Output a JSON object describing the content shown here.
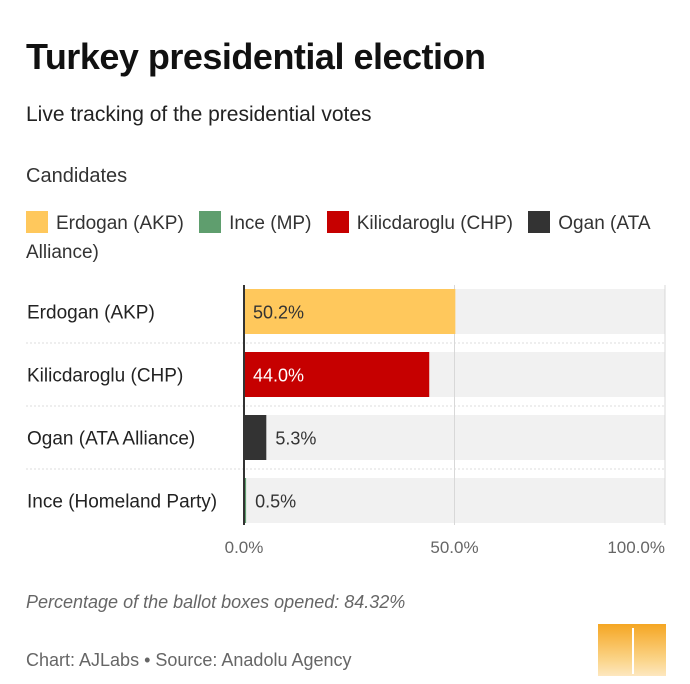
{
  "title": "Turkey presidential election",
  "subtitle": "Live tracking of the presidential votes",
  "legend": {
    "title": "Candidates",
    "items": [
      {
        "label": "Erdogan (AKP)",
        "color": "#ffc85c"
      },
      {
        "label": "Ince (MP)",
        "color": "#5f9e6e"
      },
      {
        "label": "Kilicdaroglu (CHP)",
        "color": "#c60000"
      },
      {
        "label": "Ogan (ATA Alliance)",
        "color": "#333333"
      }
    ]
  },
  "chart_data": {
    "type": "bar",
    "orientation": "horizontal",
    "categories": [
      "Erdogan (AKP)",
      "Kilicdaroglu (CHP)",
      "Ogan (ATA Alliance)",
      "Ince (Homeland Party)"
    ],
    "values": [
      50.2,
      44.0,
      5.3,
      0.5
    ],
    "value_labels": [
      "50.2%",
      "44.0%",
      "5.3%",
      "0.5%"
    ],
    "colors": [
      "#ffc85c",
      "#c60000",
      "#333333",
      "#5f9e6e"
    ],
    "label_inside": [
      true,
      true,
      false,
      false
    ],
    "label_colors": [
      "#333333",
      "#ffffff",
      "#333333",
      "#333333"
    ],
    "xlim": [
      0,
      100
    ],
    "xticks": [
      0,
      50,
      100
    ],
    "xtick_labels": [
      "0.0%",
      "50.0%",
      "100.0%"
    ],
    "grid": true
  },
  "footnote": "Percentage of the ballot boxes opened: 84.32%",
  "credit": "Chart: AJLabs • Source: Anadolu Agency",
  "colors": {
    "track": "#f1f1f1",
    "gridline": "#d8d8d8",
    "axis": "#333333"
  }
}
